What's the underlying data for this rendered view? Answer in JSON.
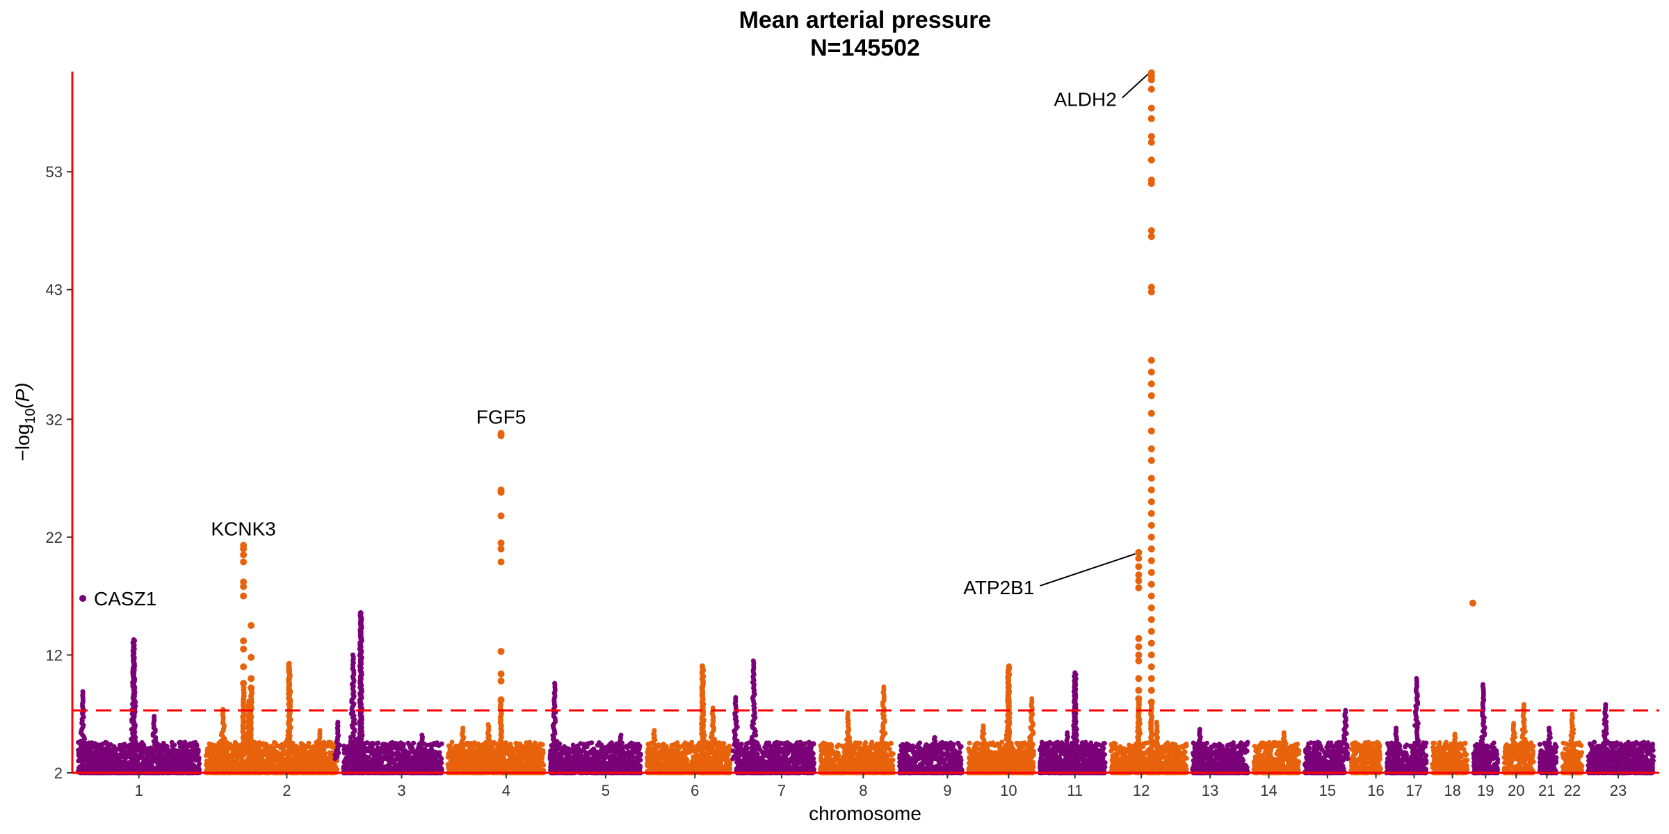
{
  "chart_data": {
    "type": "scatter",
    "subtype": "manhattan",
    "title": "Mean arterial pressure",
    "subtitle": "N=145502",
    "xlabel": "chromosome",
    "ylabel_parts": {
      "prefix": "−log",
      "subscript": "10",
      "suffix": "(P)"
    },
    "ylim": [
      2,
      61.5
    ],
    "yticks": [
      "2",
      "12",
      "22",
      "32",
      "43",
      "53"
    ],
    "ytick_values": [
      2,
      12,
      22,
      32,
      43,
      53
    ],
    "significance_line": 7.3,
    "grid": false,
    "colors": {
      "odd": "#7A0177",
      "even": "#E8620C",
      "threshold": "#FF0000",
      "axis": "#FF0000"
    },
    "chromosomes": [
      {
        "label": "1",
        "span": [
          0,
          5.0
        ],
        "tick": 2.5
      },
      {
        "label": "2",
        "span": [
          5.0,
          10.4
        ],
        "tick": 8.3
      },
      {
        "label": "3",
        "span": [
          10.4,
          14.5
        ],
        "tick": 12.8
      },
      {
        "label": "4",
        "span": [
          14.5,
          18.5
        ],
        "tick": 16.9
      },
      {
        "label": "5",
        "span": [
          18.5,
          22.3
        ],
        "tick": 20.8
      },
      {
        "label": "6",
        "span": [
          22.3,
          25.8
        ],
        "tick": 24.3
      },
      {
        "label": "7",
        "span": [
          25.8,
          29.1
        ],
        "tick": 27.7
      },
      {
        "label": "8",
        "span": [
          29.1,
          32.2
        ],
        "tick": 30.9
      },
      {
        "label": "9",
        "span": [
          32.2,
          34.9
        ],
        "tick": 34.2
      },
      {
        "label": "10",
        "span": [
          34.9,
          37.7
        ],
        "tick": 36.6
      },
      {
        "label": "11",
        "span": [
          37.7,
          40.5
        ],
        "tick": 39.2
      },
      {
        "label": "12",
        "span": [
          40.5,
          43.7
        ],
        "tick": 41.8
      },
      {
        "label": "13",
        "span": [
          43.7,
          46.1
        ],
        "tick": 44.5
      },
      {
        "label": "14",
        "span": [
          46.1,
          48.1
        ],
        "tick": 46.8
      },
      {
        "label": "15",
        "span": [
          48.1,
          49.9
        ],
        "tick": 49.1
      },
      {
        "label": "16",
        "span": [
          49.9,
          51.3
        ],
        "tick": 51.0
      },
      {
        "label": "17",
        "span": [
          51.3,
          53.1
        ],
        "tick": 52.5
      },
      {
        "label": "18",
        "span": [
          53.1,
          54.7
        ],
        "tick": 54.0
      },
      {
        "label": "19",
        "span": [
          54.7,
          55.9
        ],
        "tick": 55.3
      },
      {
        "label": "20",
        "span": [
          55.9,
          57.3
        ],
        "tick": 56.5
      },
      {
        "label": "21",
        "span": [
          57.3,
          58.2
        ],
        "tick": 57.7
      },
      {
        "label": "22",
        "span": [
          58.2,
          59.2
        ],
        "tick": 58.7
      },
      {
        "label": "23",
        "span": [
          59.2,
          62.0
        ],
        "tick": 60.5
      }
    ],
    "peaks": [
      {
        "chr": 1,
        "x": 0.3,
        "top": 8.9
      },
      {
        "chr": 1,
        "x": 2.3,
        "top": 13.3
      },
      {
        "chr": 1,
        "x": 3.1,
        "top": 6.8
      },
      {
        "chr": 2,
        "x": 5.8,
        "top": 7.4
      },
      {
        "chr": 2,
        "x": 6.8,
        "top": 8.1
      },
      {
        "chr": 2,
        "x": 8.4,
        "top": 11.3
      },
      {
        "chr": 2,
        "x": 9.6,
        "top": 5.6
      },
      {
        "chr": 3,
        "x": 10.3,
        "top": 6.3
      },
      {
        "chr": 3,
        "x": 10.9,
        "top": 12.0
      },
      {
        "chr": 3,
        "x": 11.2,
        "top": 8.0
      },
      {
        "chr": 3,
        "x": 13.6,
        "top": 5.2
      },
      {
        "chr": 4,
        "x": 15.2,
        "top": 5.8
      },
      {
        "chr": 4,
        "x": 16.2,
        "top": 6.1
      },
      {
        "chr": 5,
        "x": 18.8,
        "top": 9.6
      },
      {
        "chr": 5,
        "x": 21.4,
        "top": 5.2
      },
      {
        "chr": 6,
        "x": 22.7,
        "top": 5.6
      },
      {
        "chr": 6,
        "x": 24.6,
        "top": 9.3
      },
      {
        "chr": 6,
        "x": 25.0,
        "top": 7.5
      },
      {
        "chr": 7,
        "x": 25.9,
        "top": 8.4
      },
      {
        "chr": 7,
        "x": 26.6,
        "top": 11.5
      },
      {
        "chr": 8,
        "x": 30.3,
        "top": 7.1
      },
      {
        "chr": 8,
        "x": 31.7,
        "top": 9.3
      },
      {
        "chr": 9,
        "x": 33.7,
        "top": 5.0
      },
      {
        "chr": 10,
        "x": 35.6,
        "top": 6.0
      },
      {
        "chr": 10,
        "x": 36.6,
        "top": 11.0
      },
      {
        "chr": 10,
        "x": 37.5,
        "top": 8.3
      },
      {
        "chr": 11,
        "x": 39.2,
        "top": 10.5
      },
      {
        "chr": 11,
        "x": 38.9,
        "top": 5.4
      },
      {
        "chr": 12,
        "x": 41.7,
        "top": 8.0
      },
      {
        "chr": 12,
        "x": 42.4,
        "top": 6.3
      },
      {
        "chr": 13,
        "x": 44.1,
        "top": 5.7
      },
      {
        "chr": 14,
        "x": 47.4,
        "top": 5.4
      },
      {
        "chr": 15,
        "x": 49.8,
        "top": 7.3
      },
      {
        "chr": 17,
        "x": 51.8,
        "top": 5.8
      },
      {
        "chr": 17,
        "x": 52.6,
        "top": 10.0
      },
      {
        "chr": 18,
        "x": 54.1,
        "top": 5.3
      },
      {
        "chr": 19,
        "x": 55.2,
        "top": 9.5
      },
      {
        "chr": 20,
        "x": 56.4,
        "top": 6.2
      },
      {
        "chr": 20,
        "x": 56.8,
        "top": 7.8
      },
      {
        "chr": 21,
        "x": 57.8,
        "top": 5.8
      },
      {
        "chr": 22,
        "x": 58.7,
        "top": 7.0
      },
      {
        "chr": 23,
        "x": 60.0,
        "top": 7.8
      }
    ],
    "big_peaks": [
      {
        "x": 2.3,
        "values": [
          8.2,
          8.9,
          9.4,
          9.8,
          10.0,
          12.8,
          13.3
        ],
        "chr": 1
      },
      {
        "x": 8.4,
        "values": [
          8.0,
          9.0,
          9.6,
          10.3,
          10.9,
          11.3
        ],
        "chr": 2
      },
      {
        "x": 11.2,
        "values": [
          8.5,
          9.5,
          10.4,
          11.0,
          11.8,
          12.4,
          13.0,
          13.6,
          14.2,
          14.7,
          15.2,
          15.6
        ],
        "chr": 3
      },
      {
        "x": 24.6,
        "values": [
          8.3,
          9.0,
          9.6,
          10.2,
          10.8,
          11.2
        ],
        "chr": 6
      },
      {
        "x": 36.6,
        "values": [
          8.0,
          8.6,
          9.2,
          9.8,
          10.3,
          10.9,
          11.1
        ],
        "chr": 10
      },
      {
        "x": 39.2,
        "values": [
          8.0,
          8.9,
          9.6,
          10.2,
          10.5
        ],
        "chr": 11
      }
    ],
    "hits": [
      {
        "chr": 1,
        "x": 0.3,
        "values": [
          16.8
        ]
      },
      {
        "chr": 2,
        "x": 6.6,
        "values": [
          9.6,
          11.0,
          12.5,
          13.2,
          17.0,
          17.8,
          18.2,
          19.9,
          20.5,
          21.0,
          21.3
        ]
      },
      {
        "chr": 2,
        "x": 6.9,
        "values": [
          9.2,
          10.0,
          11.8,
          14.5
        ]
      },
      {
        "chr": 4,
        "x": 16.7,
        "values": [
          8.2,
          9.8,
          10.4,
          12.3,
          19.9,
          21.0,
          21.5,
          23.8,
          25.8,
          26.0,
          30.6,
          30.8
        ]
      },
      {
        "chr": 12,
        "x": 41.7,
        "values": [
          8.3,
          9.0,
          10.0,
          11.5,
          12.0,
          12.7,
          13.4,
          17.7,
          18.3,
          18.8,
          19.5,
          20.2,
          20.7
        ]
      },
      {
        "chr": 12,
        "x": 42.2,
        "values": [
          8.0,
          9.0,
          10.0,
          11.0,
          12.0,
          13.0,
          14.0,
          15.0,
          16.0,
          17.0,
          18.0,
          19.0,
          20.0,
          21.0,
          22.0,
          23.0,
          24.0,
          25.0,
          26.0,
          27.0,
          28.5,
          29.5,
          31.0,
          32.5,
          34.0,
          35.0,
          36.0,
          37.0,
          42.8,
          43.2,
          47.5,
          48.0,
          52.0,
          52.3,
          54.0,
          55.5,
          56.0,
          57.5,
          58.4,
          60.0,
          60.8,
          61.1,
          61.4
        ]
      },
      {
        "chr": 18,
        "x": 54.8,
        "values": [
          16.4
        ]
      }
    ],
    "annotations": [
      {
        "label": "CASZ1",
        "x": 0.3,
        "y": 16.8
      },
      {
        "label": "KCNK3",
        "x": 6.6,
        "y": 21.3
      },
      {
        "label": "FGF5",
        "x": 16.7,
        "y": 30.8
      },
      {
        "label": "ATP2B1",
        "x": 41.7,
        "y": 20.7
      },
      {
        "label": "ALDH2",
        "x": 42.2,
        "y": 61.4
      }
    ]
  }
}
